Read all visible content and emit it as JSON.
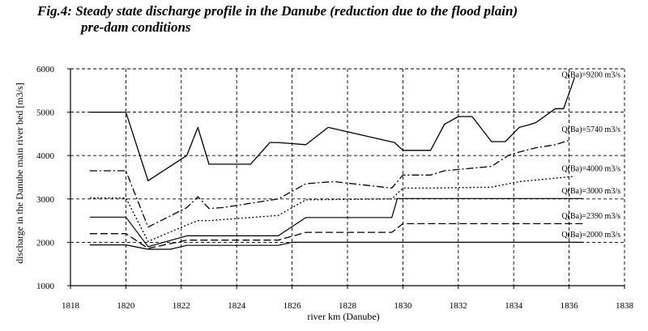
{
  "title": {
    "line1": "Fig.4: Steady state discharge profile in the Danube (reduction due to the flood plain)",
    "line2": "pre-dam conditions"
  },
  "chart_data": {
    "type": "line",
    "title": "Fig.4: Steady state discharge profile in the Danube (reduction due to the flood plain) pre-dam conditions",
    "xlabel": "river km (Danube)",
    "ylabel": "discharge in the Danube main river bed [m3/s]",
    "xlim": [
      1818,
      1838
    ],
    "ylim": [
      1000,
      6000
    ],
    "xticks": [
      1818,
      1820,
      1822,
      1824,
      1826,
      1828,
      1830,
      1832,
      1834,
      1836,
      1838
    ],
    "yticks": [
      1000,
      2000,
      3000,
      4000,
      5000,
      6000
    ],
    "grid": "dashed vertical and horizontal gridlines",
    "series": [
      {
        "name": "Q(Ba)=9200 m3/s",
        "style": "solid",
        "x": [
          1818.7,
          1820.0,
          1820.8,
          1822.2,
          1822.6,
          1823.0,
          1823.5,
          1824.5,
          1825.2,
          1825.5,
          1826.5,
          1827.3,
          1829.7,
          1830.0,
          1831.0,
          1831.5,
          1832.0,
          1832.5,
          1833.2,
          1833.7,
          1834.2,
          1834.5,
          1834.8,
          1835.5,
          1835.8,
          1836.2
        ],
        "y": [
          5000,
          5000,
          3420,
          4000,
          4650,
          3800,
          3800,
          3800,
          4300,
          4300,
          4250,
          4650,
          4300,
          4120,
          4120,
          4720,
          4900,
          4900,
          4320,
          4320,
          4650,
          4700,
          4760,
          5080,
          5080,
          5800
        ]
      },
      {
        "name": "Q(Ba)=5740 m3/s",
        "style": "dash-dot",
        "x": [
          1818.7,
          1820.0,
          1820.8,
          1822.2,
          1822.6,
          1823.0,
          1823.5,
          1825.5,
          1826.5,
          1827.5,
          1829.6,
          1830.0,
          1831.0,
          1831.5,
          1833.2,
          1833.8,
          1834.2,
          1834.8,
          1835.5,
          1836.0
        ],
        "y": [
          3650,
          3650,
          2350,
          2800,
          3050,
          2780,
          2800,
          3000,
          3350,
          3400,
          3250,
          3550,
          3550,
          3650,
          3750,
          4000,
          4080,
          4180,
          4250,
          4350
        ]
      },
      {
        "name": "Q(Ba)=4000 m3/s",
        "style": "dotted",
        "x": [
          1818.7,
          1820.0,
          1820.8,
          1822.2,
          1822.6,
          1823.0,
          1825.5,
          1826.5,
          1829.6,
          1830.0,
          1831.0,
          1833.2,
          1834.2,
          1836.2
        ],
        "y": [
          3020,
          3020,
          2020,
          2400,
          2500,
          2500,
          2620,
          2980,
          3000,
          3250,
          3250,
          3270,
          3400,
          3520
        ]
      },
      {
        "name": "Q(Ba)=3000 m3/s",
        "style": "solid-thin",
        "x": [
          1818.7,
          1820.0,
          1820.8,
          1822.2,
          1822.6,
          1825.5,
          1826.5,
          1829.6,
          1829.8,
          1836.5
        ],
        "y": [
          2580,
          2580,
          1900,
          2150,
          2150,
          2150,
          2570,
          2570,
          3010,
          3010
        ]
      },
      {
        "name": "Q(Ba)=2390 m3/s",
        "style": "dashed",
        "x": [
          1818.7,
          1820.0,
          1820.8,
          1822.2,
          1825.5,
          1826.5,
          1829.6,
          1830.0,
          1836.5
        ],
        "y": [
          2200,
          2200,
          1860,
          2050,
          2050,
          2230,
          2230,
          2430,
          2430
        ]
      },
      {
        "name": "Q(Ba)=2000 m3/s",
        "style": "solid-thin",
        "x": [
          1818.7,
          1820.0,
          1820.8,
          1821.6,
          1822.2,
          1825.5,
          1826.0,
          1836.5
        ],
        "y": [
          1940,
          1940,
          1840,
          1840,
          1930,
          1930,
          2000,
          2000
        ]
      }
    ]
  }
}
